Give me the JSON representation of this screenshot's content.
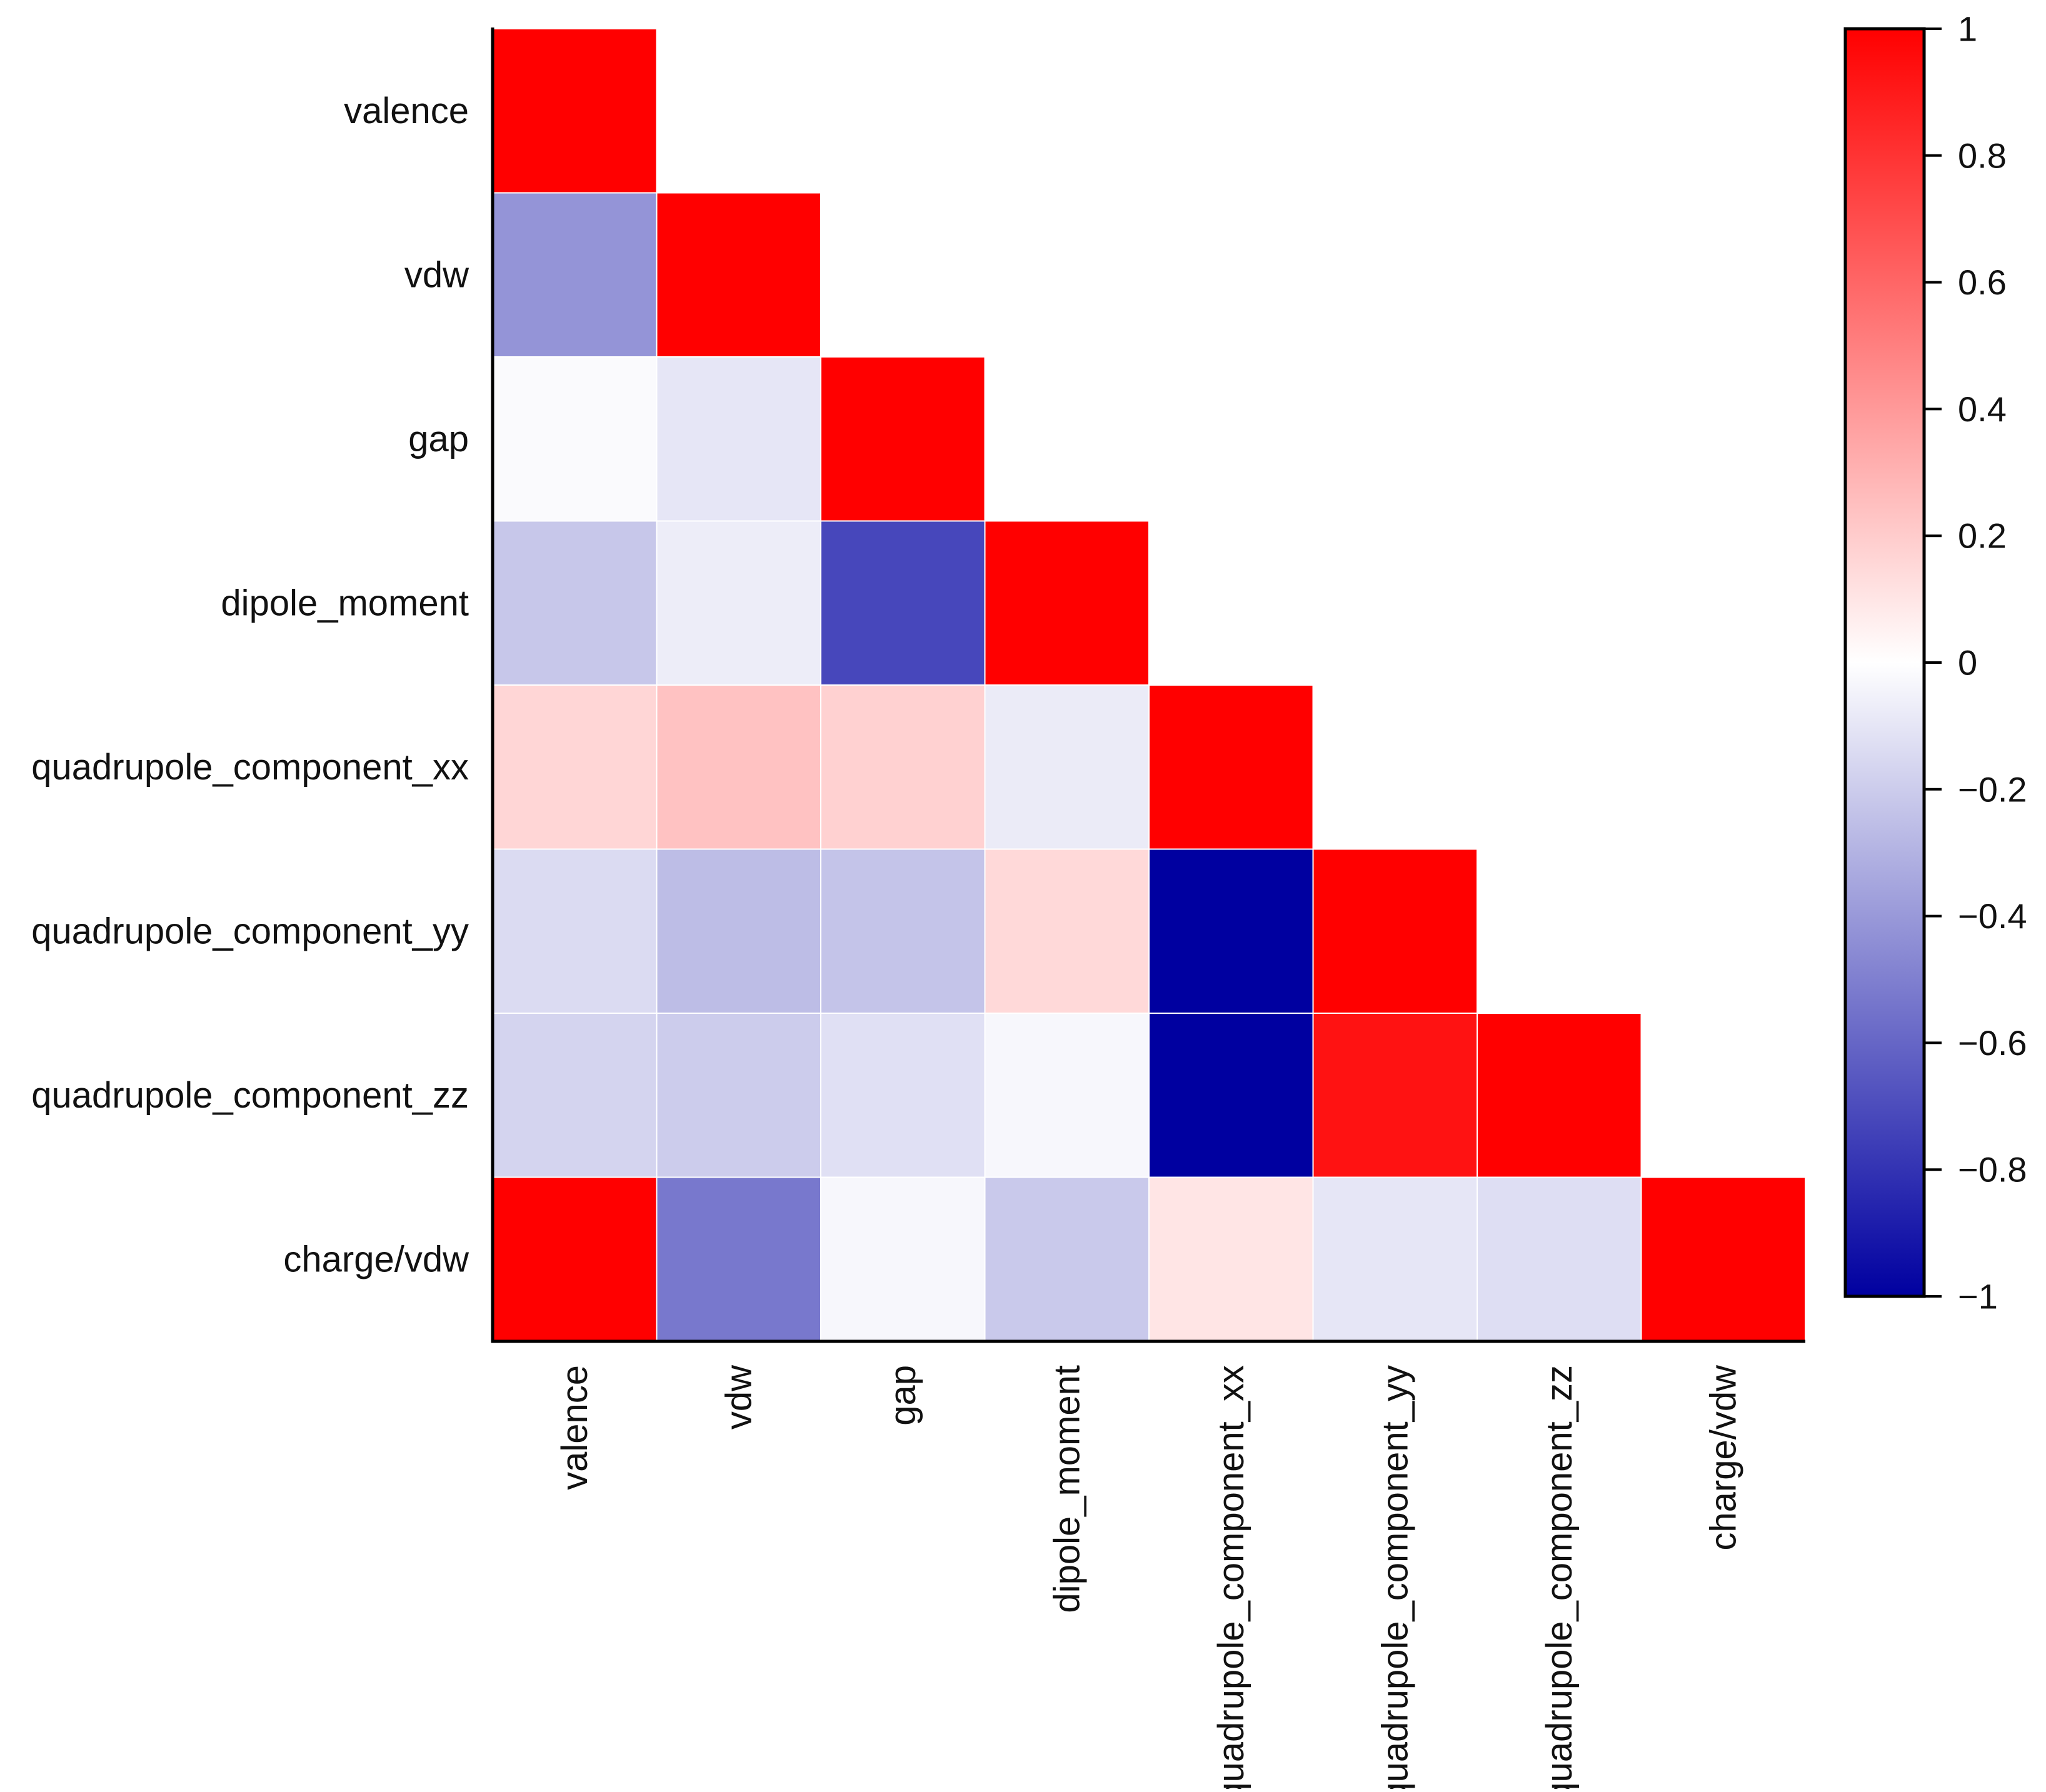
{
  "chart_data": {
    "type": "heatmap",
    "title": "",
    "xlabel": "",
    "ylabel": "",
    "layout": "lower-triangle",
    "row_labels": [
      "valence",
      "vdw",
      "gap",
      "dipole_moment",
      "quadrupole_component_xx",
      "quadrupole_component_yy",
      "quadrupole_component_zz",
      "charge/vdw"
    ],
    "col_labels": [
      "valence",
      "vdw",
      "gap",
      "dipole_moment",
      "quadrupole_component_xx",
      "quadrupole_component_yy",
      "quadrupole_component_zz",
      "charge/vdw"
    ],
    "values": [
      [
        1.0
      ],
      [
        -0.42,
        1.0
      ],
      [
        -0.02,
        -0.1,
        1.0
      ],
      [
        -0.22,
        -0.07,
        -0.72,
        1.0
      ],
      [
        0.16,
        0.24,
        0.18,
        -0.08,
        1.0
      ],
      [
        -0.14,
        -0.26,
        -0.23,
        0.15,
        -1.0,
        1.0
      ],
      [
        -0.17,
        -0.2,
        -0.12,
        -0.03,
        -1.0,
        0.93,
        1.0
      ],
      [
        1.0,
        -0.53,
        -0.03,
        -0.21,
        0.1,
        -0.1,
        -0.13,
        1.0
      ]
    ],
    "colorbar": {
      "range": [
        -1,
        1
      ],
      "ticks": [
        1,
        0.8,
        0.6,
        0.4,
        0.2,
        0,
        -0.2,
        -0.4,
        -0.6,
        -0.8,
        -1
      ],
      "tick_labels": [
        "1",
        "0.8",
        "0.6",
        "0.4",
        "0.2",
        "0",
        "−0.2",
        "−0.4",
        "−0.6",
        "−0.8",
        "−1"
      ],
      "colors": {
        "max": "#ff0000",
        "mid": "#ffffff",
        "min": "#0000a0"
      }
    }
  }
}
